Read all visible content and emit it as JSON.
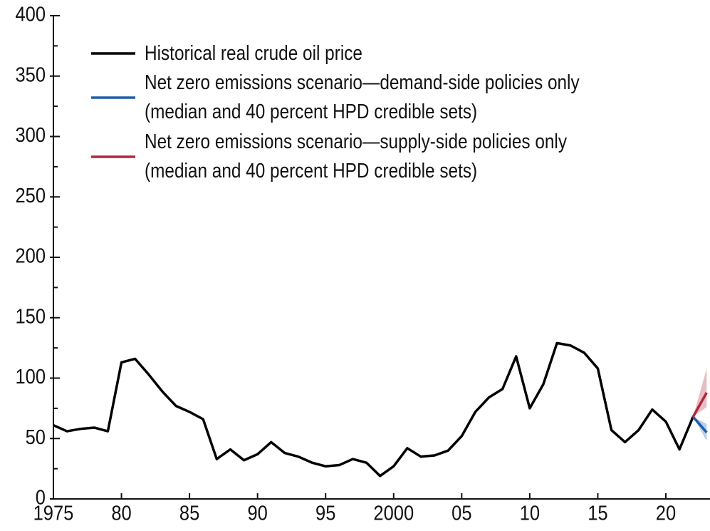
{
  "chart_data": {
    "type": "line",
    "x": [
      1975,
      1976,
      1977,
      1978,
      1979,
      1980,
      1981,
      1982,
      1983,
      1984,
      1985,
      1986,
      1987,
      1988,
      1989,
      1990,
      1991,
      1992,
      1993,
      1994,
      1995,
      1996,
      1997,
      1998,
      1999,
      2000,
      2001,
      2002,
      2003,
      2004,
      2005,
      2006,
      2007,
      2008,
      2009,
      2010,
      2011,
      2012,
      2013,
      2014,
      2015,
      2016,
      2017,
      2018,
      2019,
      2020,
      2021,
      2022
    ],
    "series": [
      {
        "name": "Historical real crude oil price",
        "color": "#000000",
        "values": [
          61,
          56,
          58,
          59,
          56,
          113,
          116,
          103,
          89,
          77,
          72,
          66,
          33,
          41,
          32,
          37,
          47,
          38,
          35,
          30,
          27,
          28,
          33,
          30,
          19,
          27,
          42,
          35,
          36,
          40,
          52,
          72,
          84,
          91,
          118,
          75,
          95,
          129,
          127,
          121,
          108,
          57,
          47,
          57,
          74,
          64,
          41,
          68
        ]
      },
      {
        "name": "Net zero emissions scenario—demand-side policies only\n(median and 40 percent HPD credible sets)",
        "color": "#1f5fa8",
        "x": [
          2022,
          2023
        ],
        "values": [
          68,
          55
        ],
        "lower": [
          68,
          48
        ],
        "upper": [
          68,
          62
        ]
      },
      {
        "name": "Net zero emissions scenario—supply-side policies only\n(median and 40 percent HPD credible sets)",
        "color": "#b0283c",
        "x": [
          2022,
          2023
        ],
        "values": [
          68,
          88
        ],
        "lower": [
          68,
          76
        ],
        "upper": [
          68,
          108
        ]
      }
    ],
    "xlim": [
      1975,
      2023.2
    ],
    "xticks": [
      1975,
      {
        "value": 1980,
        "label": "80"
      },
      {
        "value": 1985,
        "label": "85"
      },
      {
        "value": 1990,
        "label": "90"
      },
      {
        "value": 1995,
        "label": "95"
      },
      2000,
      {
        "value": 2005,
        "label": "05"
      },
      {
        "value": 2010,
        "label": "10"
      },
      {
        "value": 2015,
        "label": "15"
      },
      {
        "value": 2020,
        "label": "20"
      }
    ],
    "ylim": [
      0,
      400
    ],
    "yticks": [
      0,
      50,
      100,
      150,
      200,
      250,
      300,
      350,
      400
    ],
    "yminorticks": [
      25,
      75,
      125,
      175,
      225,
      275,
      325,
      375
    ]
  }
}
